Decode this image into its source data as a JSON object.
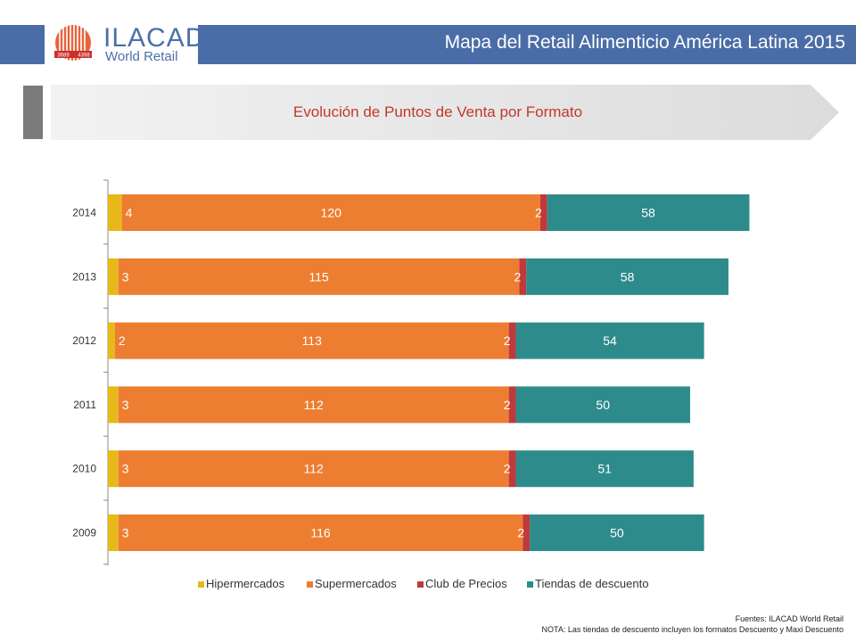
{
  "header": {
    "logo_name": "ILACAD",
    "logo_sub": "World Retail",
    "logo_badge_left": "3689",
    "logo_badge_right": "4398",
    "title": "Mapa del Retail Alimenticio América Latina 2015"
  },
  "section": {
    "title": "Evolución de Puntos de Venta por Formato"
  },
  "chart_data": {
    "type": "bar",
    "orientation": "horizontal",
    "stacked": true,
    "categories": [
      "2014",
      "2013",
      "2012",
      "2011",
      "2010",
      "2009"
    ],
    "series": [
      {
        "name": "Hipermercados",
        "values": [
          4,
          3,
          2,
          3,
          3,
          3
        ]
      },
      {
        "name": "Supermercados",
        "values": [
          120,
          115,
          113,
          112,
          112,
          116
        ]
      },
      {
        "name": "Club de Precios",
        "values": [
          2,
          2,
          2,
          2,
          2,
          2
        ]
      },
      {
        "name": "Tiendas de descuento",
        "values": [
          58,
          58,
          54,
          50,
          51,
          50
        ]
      }
    ],
    "xlim": [
      0,
      184
    ],
    "grid": false,
    "legend": "bottom",
    "data_labels": true
  },
  "colors": {
    "Hipermercados": "#e8b71a",
    "Supermercados": "#ed7d31",
    "Club de Precios": "#c0393b",
    "Tiendas de descuento": "#2e8b8c",
    "header": "#4a6da7",
    "title_text": "#c0392b"
  },
  "footer": {
    "sources": "Fuentes: ILACAD World Retail",
    "note": "NOTA: Las tiendas de descuento incluyen los formatos Descuento y Maxi Descuento"
  }
}
